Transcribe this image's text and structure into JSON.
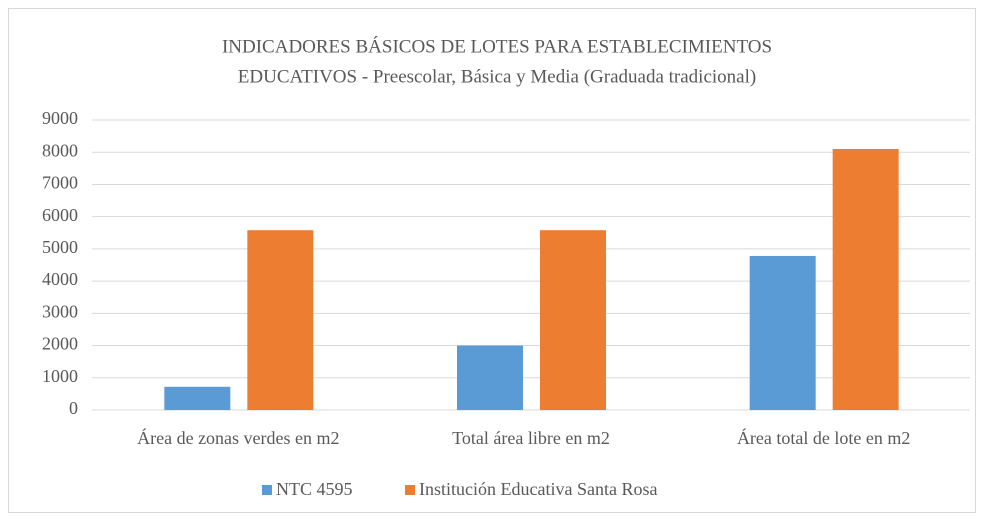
{
  "chart_data": {
    "type": "bar",
    "title": [
      "INDICADORES BÁSICOS DE LOTES PARA ESTABLECIMIENTOS",
      "EDUCATIVOS - Preescolar, Básica y Media (Graduada tradicional)"
    ],
    "categories": [
      "Área de zonas verdes en m2",
      "Total área libre en m2",
      "Área total de lote en m2"
    ],
    "series": [
      {
        "name": "NTC 4595",
        "color": "#5b9bd5",
        "values": [
          720,
          2000,
          4780
        ]
      },
      {
        "name": "Institución Educativa Santa Rosa",
        "color": "#ed7d31",
        "values": [
          5580,
          5580,
          8100
        ]
      }
    ],
    "ylim": [
      0,
      9000
    ],
    "yticks": [
      0,
      1000,
      2000,
      3000,
      4000,
      5000,
      6000,
      7000,
      8000,
      9000
    ],
    "grid": true,
    "legend": "bottom"
  }
}
